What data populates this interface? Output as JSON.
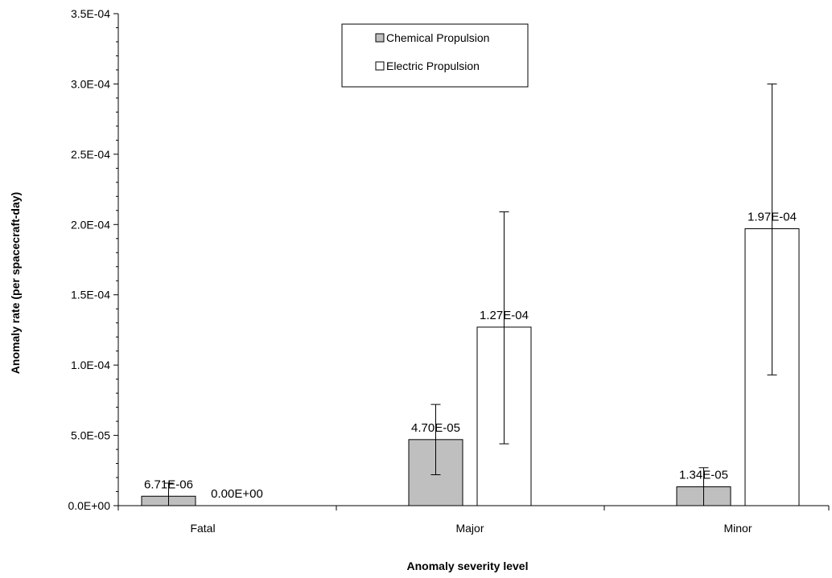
{
  "chart_data": {
    "type": "bar",
    "title": "",
    "xlabel": "Anomaly severity level",
    "ylabel": "Anomaly rate (per spacecraft-day)",
    "categories": [
      "Fatal",
      "Major",
      "Minor"
    ],
    "ylim": [
      0,
      0.00035
    ],
    "y_ticks": [
      0,
      5e-05,
      0.0001,
      0.00015,
      0.0002,
      0.00025,
      0.0003,
      0.00035
    ],
    "y_tick_labels": [
      "0.0E+00",
      "5.0E-05",
      "1.0E-04",
      "1.5E-04",
      "2.0E-04",
      "2.5E-04",
      "3.0E-04",
      "3.5E-04"
    ],
    "grid": false,
    "legend_position": "top-center",
    "series": [
      {
        "name": "Chemical Propulsion",
        "color": "#bfbfbf",
        "values": [
          6.71e-06,
          4.7e-05,
          1.34e-05
        ],
        "value_labels": [
          "6.71E-06",
          "4.70E-05",
          "1.34E-05"
        ],
        "error_low": [
          0.0,
          2.2e-05,
          0.0
        ],
        "error_high": [
          1.6e-05,
          7.2e-05,
          2.7e-05
        ]
      },
      {
        "name": "Electric Propulsion",
        "color": "#ffffff",
        "values": [
          0.0,
          0.000127,
          0.000197
        ],
        "value_labels": [
          "0.00E+00",
          "1.27E-04",
          "1.97E-04"
        ],
        "error_low": [
          null,
          4.4e-05,
          9.3e-05
        ],
        "error_high": [
          null,
          0.000209,
          0.0003
        ]
      }
    ]
  }
}
